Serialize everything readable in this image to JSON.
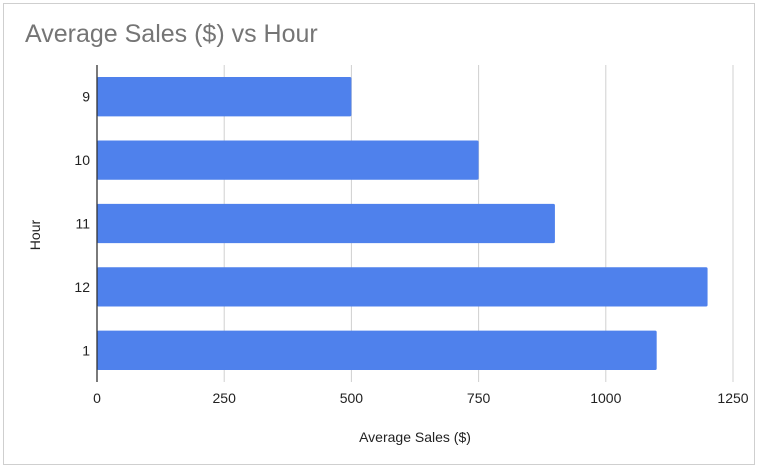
{
  "chart_data": {
    "type": "bar",
    "orientation": "horizontal",
    "title": "Average Sales ($) vs Hour",
    "xlabel": "Average Sales ($)",
    "ylabel": "Hour",
    "categories": [
      "9",
      "10",
      "11",
      "12",
      "1"
    ],
    "values": [
      500,
      750,
      900,
      1200,
      1100
    ],
    "xlim": [
      0,
      1250
    ],
    "xticks": [
      "0",
      "250",
      "500",
      "750",
      "1000",
      "1250"
    ],
    "grid": true,
    "legend": "none",
    "bar_color": "#4f81ec"
  }
}
